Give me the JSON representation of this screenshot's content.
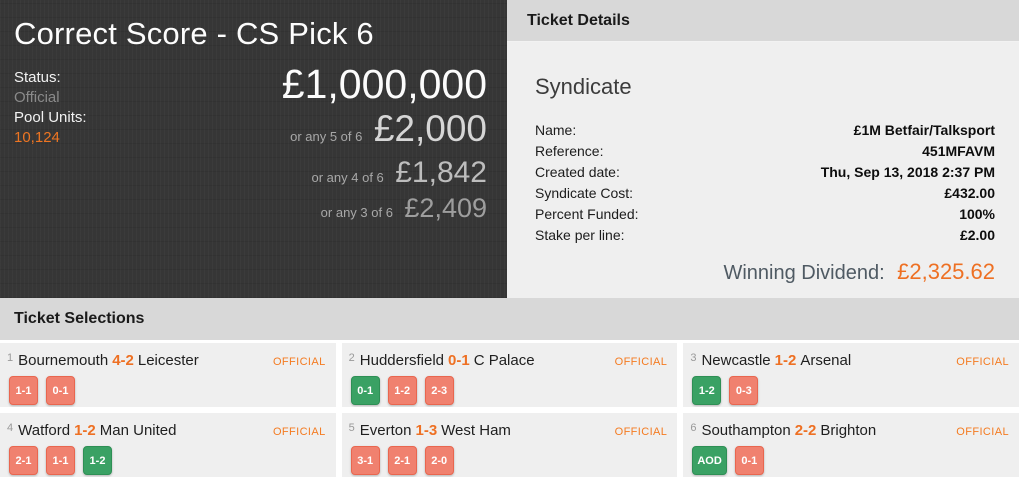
{
  "jackpot_panel": {
    "title": "Correct Score - CS Pick 6",
    "status_label": "Status:",
    "status_value": "Official",
    "pool_units_label": "Pool Units:",
    "pool_units_value": "10,124",
    "prizes": [
      {
        "qualifier": "",
        "amount": "£1,000,000"
      },
      {
        "qualifier": "or any 5 of 6",
        "amount": "£2,000"
      },
      {
        "qualifier": "or any 4 of 6",
        "amount": "£1,842"
      },
      {
        "qualifier": "or any 3 of 6",
        "amount": "£2,409"
      }
    ]
  },
  "ticket_details": {
    "header": "Ticket Details",
    "section_title": "Syndicate",
    "rows": [
      {
        "label": "Name:",
        "value": "£1M Betfair/Talksport"
      },
      {
        "label": "Reference:",
        "value": "451MFAVM"
      },
      {
        "label": "Created date:",
        "value": "Thu, Sep 13, 2018 2:37 PM"
      },
      {
        "label": "Syndicate Cost:",
        "value": "£432.00"
      },
      {
        "label": "Percent Funded:",
        "value": "100%"
      },
      {
        "label": "Stake per line:",
        "value": "£2.00"
      }
    ],
    "winning_dividend_label": "Winning Dividend:",
    "winning_dividend_value": "£2,325.62"
  },
  "ticket_selections": {
    "header": "Ticket Selections",
    "matches": [
      {
        "number": "1",
        "home": "Bournemouth",
        "score": "4-2",
        "away": "Leicester",
        "status": "OFFICIAL",
        "picks": [
          {
            "label": "1-1",
            "result": "lose"
          },
          {
            "label": "0-1",
            "result": "lose"
          }
        ]
      },
      {
        "number": "2",
        "home": "Huddersfield",
        "score": "0-1",
        "away": "C Palace",
        "status": "OFFICIAL",
        "picks": [
          {
            "label": "0-1",
            "result": "win"
          },
          {
            "label": "1-2",
            "result": "lose"
          },
          {
            "label": "2-3",
            "result": "lose"
          }
        ]
      },
      {
        "number": "3",
        "home": "Newcastle",
        "score": "1-2",
        "away": "Arsenal",
        "status": "OFFICIAL",
        "picks": [
          {
            "label": "1-2",
            "result": "win"
          },
          {
            "label": "0-3",
            "result": "lose"
          }
        ]
      },
      {
        "number": "4",
        "home": "Watford",
        "score": "1-2",
        "away": "Man United",
        "status": "OFFICIAL",
        "picks": [
          {
            "label": "2-1",
            "result": "lose"
          },
          {
            "label": "1-1",
            "result": "lose"
          },
          {
            "label": "1-2",
            "result": "win"
          }
        ]
      },
      {
        "number": "5",
        "home": "Everton",
        "score": "1-3",
        "away": "West Ham",
        "status": "OFFICIAL",
        "picks": [
          {
            "label": "3-1",
            "result": "lose"
          },
          {
            "label": "2-1",
            "result": "lose"
          },
          {
            "label": "2-0",
            "result": "lose"
          }
        ]
      },
      {
        "number": "6",
        "home": "Southampton",
        "score": "2-2",
        "away": "Brighton",
        "status": "OFFICIAL",
        "picks": [
          {
            "label": "AOD",
            "result": "win"
          },
          {
            "label": "0-1",
            "result": "lose"
          }
        ]
      }
    ]
  },
  "colors": {
    "accent_orange": "#ee7023",
    "win_green": "#3aa164",
    "lose_red": "#f0816f",
    "panel_dark": "#363636",
    "header_gray": "#d8d8d8",
    "body_gray": "#efefef"
  }
}
